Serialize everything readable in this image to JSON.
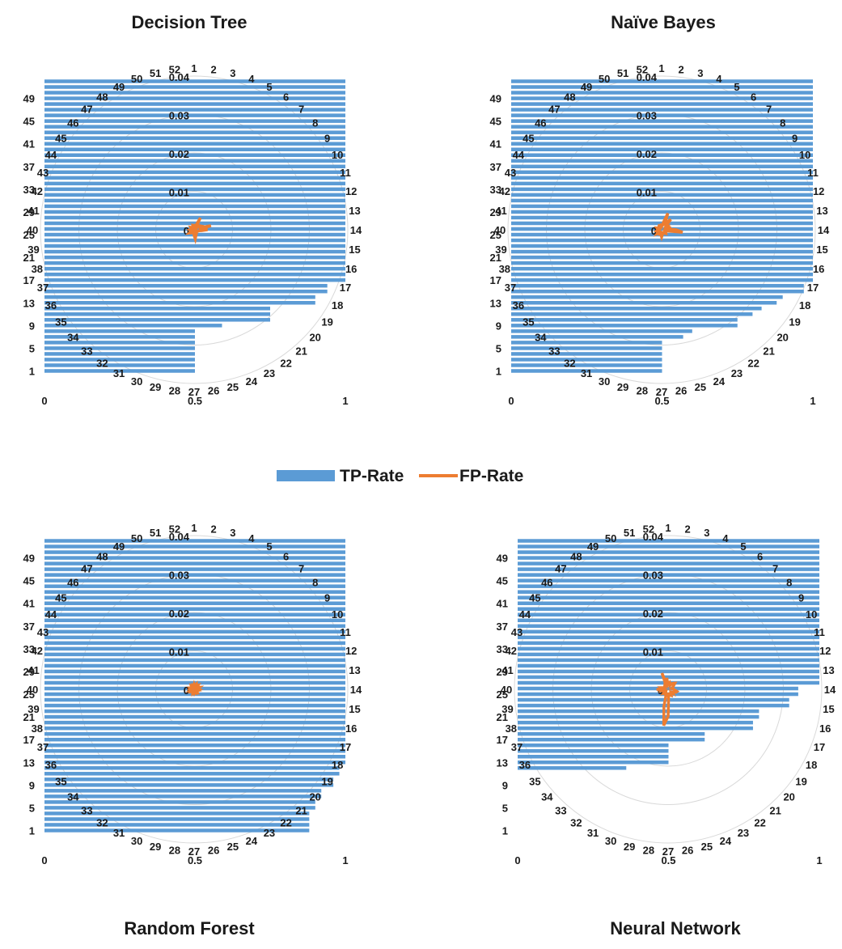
{
  "legend": {
    "tp_label": "TP-Rate",
    "fp_label": "FP-Rate",
    "tp_color": "#5b9bd5",
    "fp_color": "#ed7d31"
  },
  "chart_data": [
    {
      "type": "bar+radar",
      "title": "Decision Tree",
      "bar_axis": {
        "ticks": [
          "0",
          "0.5",
          "1"
        ],
        "range": [
          0,
          1
        ]
      },
      "category_ticks": [
        "1",
        "5",
        "9",
        "13",
        "17",
        "21",
        "25",
        "29",
        "33",
        "37",
        "41",
        "45",
        "49"
      ],
      "radar_axis": {
        "ticks": [
          "0",
          "0.01",
          "0.02",
          "0.03",
          "0.04"
        ],
        "range": [
          0,
          0.04
        ]
      },
      "radar_categories": [
        "1",
        "2",
        "3",
        "4",
        "5",
        "6",
        "7",
        "8",
        "9",
        "10",
        "11",
        "12",
        "13",
        "14",
        "15",
        "16",
        "17",
        "18",
        "19",
        "20",
        "21",
        "22",
        "23",
        "24",
        "25",
        "26",
        "27",
        "28",
        "29",
        "30",
        "31",
        "32",
        "33",
        "34",
        "35",
        "36",
        "37",
        "38",
        "39",
        "40",
        "41",
        "42",
        "43",
        "44",
        "45",
        "46",
        "47",
        "48",
        "49",
        "50",
        "51",
        "52"
      ],
      "tp_rate": [
        0.5,
        0.5,
        0.5,
        0.5,
        0.5,
        0.5,
        0.5,
        0.5,
        0.59,
        0.75,
        0.75,
        0.75,
        0.9,
        0.9,
        0.94,
        0.94,
        1,
        1,
        1,
        1,
        1,
        1,
        1,
        1,
        1,
        1,
        1,
        1,
        1,
        1,
        1,
        1,
        1,
        1,
        1,
        1,
        1,
        1,
        1,
        1,
        1,
        1,
        1,
        1,
        1,
        1,
        1,
        1,
        1,
        1,
        1,
        1
      ],
      "fp_rate": [
        0.0015,
        0.0006,
        0.0009,
        0.0011,
        0.0035,
        0.0012,
        0.0008,
        0.0006,
        0.0018,
        0.0021,
        0.0013,
        0.0045,
        0.0016,
        0.0035,
        0.0019,
        0.0011,
        0.0007,
        0.0009,
        0.0008,
        0.0007,
        0.0009,
        0.0011,
        0.0012,
        0.0015,
        0.0018,
        0.0024,
        0.0015,
        0.0009,
        0.0007,
        0.0006,
        0.0007,
        0.0009,
        0.0011,
        0.0012,
        0.0015,
        0.0009,
        0.0006,
        0.0007,
        0.0009,
        0.0011,
        0.0008,
        0.0007,
        0.0006,
        0.0009,
        0.0011,
        0.0009,
        0.0008,
        0.0007,
        0.0009,
        0.0011,
        0.0009,
        0.0008
      ]
    },
    {
      "type": "bar+radar",
      "title": "Naïve Bayes",
      "bar_axis": {
        "ticks": [
          "0",
          "0.5",
          "1"
        ],
        "range": [
          0,
          1
        ]
      },
      "category_ticks": [
        "1",
        "5",
        "9",
        "13",
        "17",
        "21",
        "25",
        "29",
        "33",
        "37",
        "41",
        "45",
        "49"
      ],
      "radar_axis": {
        "ticks": [
          "0",
          "0.01",
          "0.02",
          "0.03",
          "0.04"
        ],
        "range": [
          0,
          0.04
        ]
      },
      "radar_categories": [
        "1",
        "2",
        "3",
        "4",
        "5",
        "6",
        "7",
        "8",
        "9",
        "10",
        "11",
        "12",
        "13",
        "14",
        "15",
        "16",
        "17",
        "18",
        "19",
        "20",
        "21",
        "22",
        "23",
        "24",
        "25",
        "26",
        "27",
        "28",
        "29",
        "30",
        "31",
        "32",
        "33",
        "34",
        "35",
        "36",
        "37",
        "38",
        "39",
        "40",
        "41",
        "42",
        "43",
        "44",
        "45",
        "46",
        "47",
        "48",
        "49",
        "50",
        "51",
        "52"
      ],
      "tp_rate": [
        0.5,
        0.5,
        0.5,
        0.5,
        0.5,
        0.5,
        0.57,
        0.6,
        0.75,
        0.75,
        0.8,
        0.83,
        0.88,
        0.9,
        0.97,
        0.97,
        1,
        1,
        1,
        1,
        1,
        1,
        1,
        1,
        1,
        1,
        1,
        1,
        1,
        1,
        1,
        1,
        1,
        1,
        1,
        1,
        1,
        1,
        1,
        1,
        1,
        1,
        1,
        1,
        1,
        1,
        1,
        1,
        1,
        1,
        1,
        1
      ],
      "fp_rate": [
        0.0008,
        0.0012,
        0.0021,
        0.0046,
        0.0018,
        0.0024,
        0.0036,
        0.0015,
        0.0012,
        0.0018,
        0.0015,
        0.0025,
        0.0016,
        0.0038,
        0.0055,
        0.0012,
        0.0009,
        0.0011,
        0.0013,
        0.0015,
        0.0012,
        0.0011,
        0.0009,
        0.0008,
        0.0011,
        0.0014,
        0.0019,
        0.0014,
        0.0012,
        0.0009,
        0.0011,
        0.0009,
        0.0012,
        0.0016,
        0.0011,
        0.0009,
        0.0012,
        0.0014,
        0.0011,
        0.0008,
        0.0009,
        0.0011,
        0.0013,
        0.0009,
        0.0007,
        0.0009,
        0.0011,
        0.0012,
        0.0009,
        0.0011,
        0.0012,
        0.0009
      ]
    },
    {
      "type": "bar+radar",
      "title": "Random Forest",
      "bar_axis": {
        "ticks": [
          "0",
          "0.5",
          "1"
        ],
        "range": [
          0,
          1
        ]
      },
      "category_ticks": [
        "1",
        "5",
        "9",
        "13",
        "17",
        "21",
        "25",
        "29",
        "33",
        "37",
        "41",
        "45",
        "49"
      ],
      "radar_axis": {
        "ticks": [
          "0",
          "0.01",
          "0.02",
          "0.03",
          "0.04"
        ],
        "range": [
          0,
          0.04
        ]
      },
      "radar_categories": [
        "1",
        "2",
        "3",
        "4",
        "5",
        "6",
        "7",
        "8",
        "9",
        "10",
        "11",
        "12",
        "13",
        "14",
        "15",
        "16",
        "17",
        "18",
        "19",
        "20",
        "21",
        "22",
        "23",
        "24",
        "25",
        "26",
        "27",
        "28",
        "29",
        "30",
        "31",
        "32",
        "33",
        "34",
        "35",
        "36",
        "37",
        "38",
        "39",
        "40",
        "41",
        "42",
        "43",
        "44",
        "45",
        "46",
        "47",
        "48",
        "49",
        "50",
        "51",
        "52"
      ],
      "tp_rate": [
        0.88,
        0.88,
        0.88,
        0.88,
        0.9,
        0.9,
        0.92,
        0.92,
        0.96,
        0.96,
        0.98,
        0.98,
        1,
        1,
        1,
        1,
        1,
        1,
        1,
        1,
        1,
        1,
        1,
        1,
        1,
        1,
        1,
        1,
        1,
        1,
        1,
        1,
        1,
        1,
        1,
        1,
        1,
        1,
        1,
        1,
        1,
        1,
        1,
        1,
        1,
        1,
        1,
        1,
        1,
        1,
        1,
        1
      ],
      "fp_rate": [
        0.0012,
        0.0009,
        0.0011,
        0.0014,
        0.001,
        0.0018,
        0.0008,
        0.0012,
        0.0009,
        0.0011,
        0.0015,
        0.0011,
        0.0009,
        0.0012,
        0.0008,
        0.0011,
        0.0009,
        0.0007,
        0.0009,
        0.0011,
        0.0008,
        0.0009,
        0.0011,
        0.0009,
        0.0007,
        0.0009,
        0.0011,
        0.0009,
        0.0008,
        0.0011,
        0.0009,
        0.0008,
        0.0007,
        0.0009,
        0.0011,
        0.0009,
        0.0012,
        0.0008,
        0.0009,
        0.0011,
        0.0009,
        0.0008,
        0.0011,
        0.0009,
        0.0007,
        0.0009,
        0.0011,
        0.0008,
        0.0009,
        0.0011,
        0.0009,
        0.0008
      ]
    },
    {
      "type": "bar+radar",
      "title": "Neural Network",
      "bar_axis": {
        "ticks": [
          "0",
          "0.5",
          "1"
        ],
        "range": [
          0,
          1
        ]
      },
      "category_ticks": [
        "1",
        "5",
        "9",
        "13",
        "17",
        "21",
        "25",
        "29",
        "33",
        "37",
        "41",
        "45",
        "49"
      ],
      "radar_axis": {
        "ticks": [
          "0",
          "0.01",
          "0.02",
          "0.03",
          "0.04"
        ],
        "range": [
          0,
          0.04
        ]
      },
      "radar_categories": [
        "1",
        "2",
        "3",
        "4",
        "5",
        "6",
        "7",
        "8",
        "9",
        "10",
        "11",
        "12",
        "13",
        "14",
        "15",
        "16",
        "17",
        "18",
        "19",
        "20",
        "21",
        "22",
        "23",
        "24",
        "25",
        "26",
        "27",
        "28",
        "29",
        "30",
        "31",
        "32",
        "33",
        "34",
        "35",
        "36",
        "37",
        "38",
        "39",
        "40",
        "41",
        "42",
        "43",
        "44",
        "45",
        "46",
        "47",
        "48",
        "49",
        "50",
        "51",
        "52"
      ],
      "tp_rate": [
        0,
        0,
        0,
        0,
        0,
        0,
        0,
        0,
        0,
        0,
        0,
        0.36,
        0.5,
        0.5,
        0.5,
        0.5,
        0.62,
        0.62,
        0.78,
        0.78,
        0.8,
        0.8,
        0.9,
        0.9,
        0.93,
        0.93,
        1,
        1,
        1,
        1,
        1,
        1,
        1,
        1,
        1,
        1,
        1,
        1,
        1,
        1,
        1,
        1,
        1,
        1,
        1,
        1,
        1,
        1,
        1,
        1,
        1,
        1
      ],
      "fp_rate": [
        0.0012,
        0.0015,
        0.0018,
        0.0015,
        0.0012,
        0.0018,
        0.0021,
        0.0024,
        0.0018,
        0.0015,
        0.0012,
        0.0009,
        0.0012,
        0.0015,
        0.0018,
        0.0024,
        0.0022,
        0.0016,
        0.0012,
        0.0016,
        0.0011,
        0.0014,
        0.0018,
        0.0016,
        0.0012,
        0.0012,
        0.007,
        0.0095,
        0.0045,
        0.0015,
        0.0012,
        0.0018,
        0.0012,
        0.0015,
        0.0009,
        0.0012,
        0.0012,
        0.0018,
        0.0015,
        0.003,
        0.0014,
        0.0018,
        0.0012,
        0.0009,
        0.0011,
        0.0012,
        0.0013,
        0.0015,
        0.0012,
        0.0045,
        0.0012,
        0.003
      ]
    }
  ]
}
